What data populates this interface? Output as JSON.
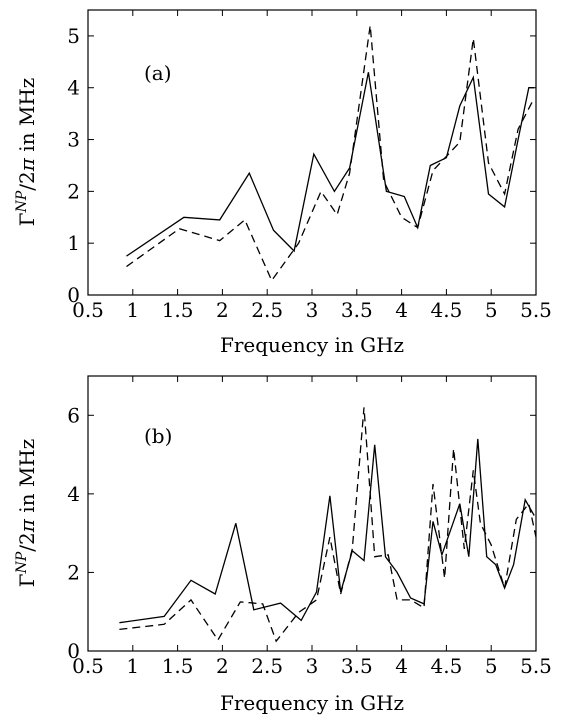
{
  "chart_data": [
    {
      "type": "line",
      "panel_label": "(a)",
      "xlabel": "Frequency in GHz",
      "ylabel": "Γ^{NP}/2π in MHz",
      "xlim": [
        0.5,
        5.5
      ],
      "ylim": [
        0,
        5.5
      ],
      "xticks": [
        0.5,
        1,
        1.5,
        2,
        2.5,
        3,
        3.5,
        4,
        4.5,
        5,
        5.5
      ],
      "xtick_labels": [
        "0.5",
        "1",
        "1.5",
        "2",
        "2.5",
        "3",
        "3.5",
        "4",
        "4.5",
        "5",
        "5.5"
      ],
      "yticks": [
        0,
        1,
        2,
        3,
        4,
        5
      ],
      "ytick_labels": [
        "0",
        "1",
        "2",
        "3",
        "4",
        "5"
      ],
      "grid": false,
      "series": [
        {
          "style": "solid",
          "color": "#000000",
          "x": [
            0.93,
            1.57,
            1.97,
            2.3,
            2.57,
            2.8,
            3.02,
            3.25,
            3.42,
            3.63,
            3.83,
            4.03,
            4.18,
            4.32,
            4.5,
            4.65,
            4.8,
            4.97,
            5.15,
            5.3,
            5.42,
            5.48
          ],
          "y": [
            0.75,
            1.5,
            1.45,
            2.35,
            1.25,
            0.85,
            2.72,
            2.0,
            2.45,
            4.3,
            2.0,
            1.9,
            1.3,
            2.5,
            2.65,
            3.65,
            4.2,
            1.95,
            1.7,
            3.0,
            4.0,
            4.0
          ]
        },
        {
          "style": "dashed",
          "color": "#000000",
          "x": [
            0.93,
            1.52,
            1.97,
            2.25,
            2.55,
            2.85,
            3.1,
            3.28,
            3.42,
            3.65,
            3.8,
            4.0,
            4.18,
            4.35,
            4.65,
            4.8,
            4.97,
            5.15,
            5.3,
            5.48
          ],
          "y": [
            0.55,
            1.28,
            1.05,
            1.45,
            0.28,
            1.0,
            2.0,
            1.55,
            2.35,
            5.2,
            2.2,
            1.5,
            1.3,
            2.4,
            2.95,
            4.95,
            2.55,
            1.95,
            3.2,
            3.8
          ]
        }
      ]
    },
    {
      "type": "line",
      "panel_label": "(b)",
      "xlabel": "Frequency in GHz",
      "ylabel": "Γ^{NP}/2π in MHz",
      "xlim": [
        0.5,
        5.5
      ],
      "ylim": [
        0,
        7
      ],
      "xticks": [
        0.5,
        1,
        1.5,
        2,
        2.5,
        3,
        3.5,
        4,
        4.5,
        5,
        5.5
      ],
      "xtick_labels": [
        "0.5",
        "1",
        "1.5",
        "2",
        "2.5",
        "3",
        "3.5",
        "4",
        "4.5",
        "5",
        "5.5"
      ],
      "yticks": [
        0,
        2,
        4,
        6
      ],
      "ytick_labels": [
        "0",
        "2",
        "4",
        "6"
      ],
      "grid": false,
      "series": [
        {
          "style": "solid",
          "color": "#000000",
          "x": [
            0.85,
            1.35,
            1.65,
            1.92,
            2.15,
            2.35,
            2.65,
            2.88,
            3.05,
            3.2,
            3.32,
            3.45,
            3.58,
            3.7,
            3.82,
            3.95,
            4.1,
            4.25,
            4.35,
            4.45,
            4.55,
            4.65,
            4.75,
            4.85,
            4.95,
            5.05,
            5.15,
            5.25,
            5.38,
            5.48
          ],
          "y": [
            0.72,
            0.88,
            1.8,
            1.45,
            3.25,
            1.05,
            1.22,
            0.78,
            1.5,
            3.95,
            1.5,
            2.55,
            2.3,
            5.25,
            2.4,
            2.0,
            1.35,
            1.2,
            3.3,
            2.45,
            3.1,
            3.75,
            2.4,
            5.4,
            2.4,
            2.2,
            1.6,
            2.2,
            3.85,
            3.45
          ]
        },
        {
          "style": "dashed",
          "color": "#000000",
          "x": [
            0.85,
            1.35,
            1.65,
            1.95,
            2.2,
            2.45,
            2.6,
            2.85,
            3.05,
            3.2,
            3.32,
            3.45,
            3.58,
            3.7,
            3.85,
            3.95,
            4.1,
            4.25,
            4.35,
            4.48,
            4.58,
            4.7,
            4.8,
            4.88,
            5.0,
            5.15,
            5.28,
            5.42,
            5.5
          ],
          "y": [
            0.55,
            0.68,
            1.3,
            0.28,
            1.25,
            1.2,
            0.25,
            0.98,
            1.3,
            2.9,
            1.45,
            2.6,
            6.2,
            2.4,
            2.45,
            1.3,
            1.3,
            1.1,
            4.25,
            1.85,
            5.15,
            2.6,
            4.6,
            3.25,
            2.7,
            1.6,
            3.35,
            3.75,
            2.9
          ]
        }
      ]
    }
  ]
}
